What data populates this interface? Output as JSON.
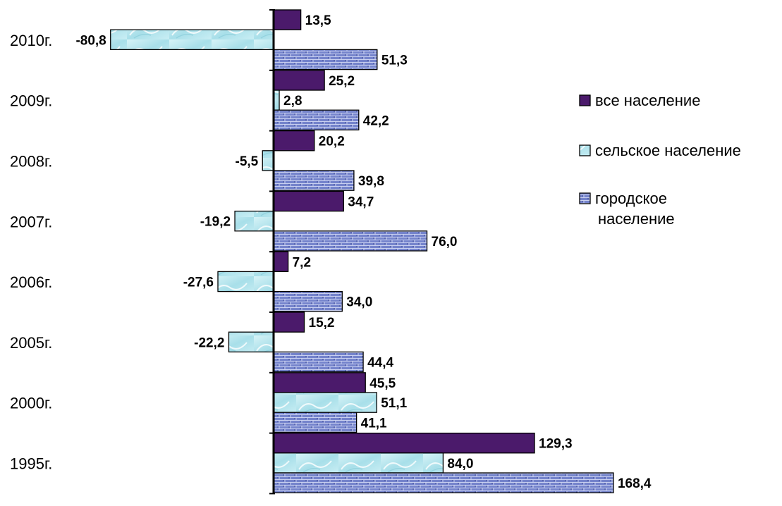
{
  "chart_data": {
    "type": "bar",
    "orientation": "horizontal",
    "categories": [
      "2010г.",
      "2009г.",
      "2008г.",
      "2007г.",
      "2006г.",
      "2005г.",
      "2000г.",
      "1995г."
    ],
    "series": [
      {
        "name": "все население",
        "values": [
          13.5,
          25.2,
          20.2,
          34.7,
          7.2,
          15.2,
          45.5,
          129.3
        ],
        "color": "#4b1a6b",
        "pattern": "solid"
      },
      {
        "name": "сельское население",
        "values": [
          -80.8,
          2.8,
          -5.5,
          -19.2,
          -27.6,
          -22.2,
          51.1,
          84.0
        ],
        "color": "#b7e6ef",
        "pattern": "water"
      },
      {
        "name": "городское население",
        "values": [
          51.3,
          42.2,
          39.8,
          76.0,
          34.0,
          44.4,
          41.1,
          168.4
        ],
        "color": "#6f7fc8",
        "pattern": "brick"
      }
    ],
    "value_labels": [
      [
        "13,5",
        "25,2",
        "20,2",
        "34,7",
        "7,2",
        "15,2",
        "45,5",
        "129,3"
      ],
      [
        "-80,8",
        "2,8",
        "-5,5",
        "-19,2",
        "-27,6",
        "-22,2",
        "51,1",
        "84,0"
      ],
      [
        "51,3",
        "42,2",
        "39,8",
        "76,0",
        "34,0",
        "44,4",
        "41,1",
        "168,4"
      ]
    ],
    "legend": {
      "placement": "right",
      "entries": [
        "все население",
        "сельское население",
        "городское\nнаселение"
      ]
    },
    "xlim": [
      -90,
      180
    ],
    "grid": false,
    "title": "",
    "xlabel": "",
    "ylabel": ""
  }
}
